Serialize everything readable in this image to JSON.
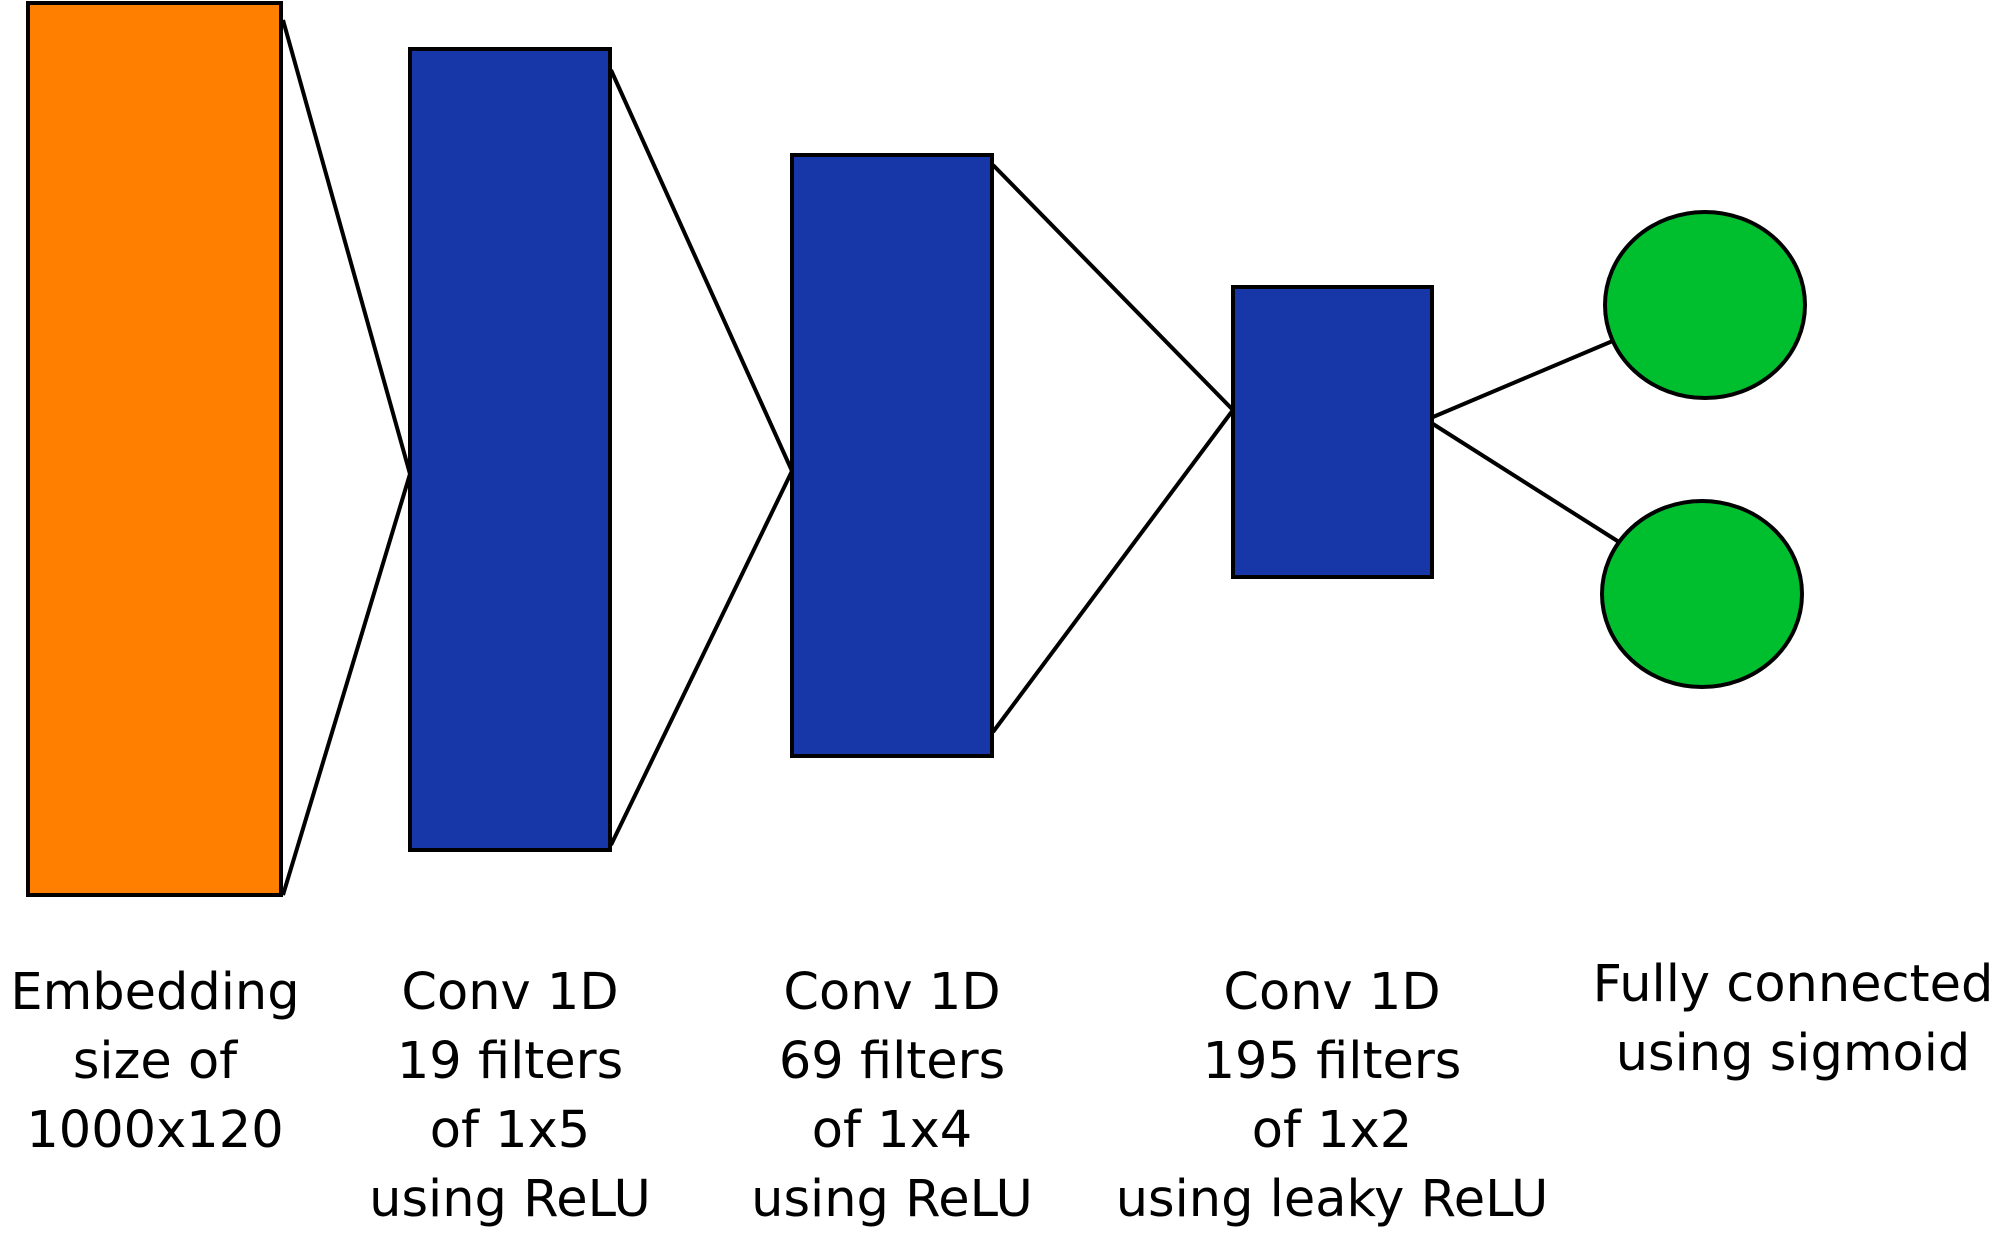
{
  "colors": {
    "embedding_fill": "#ff7f00",
    "conv_fill": "#1737a8",
    "output_fill": "#00bf2f",
    "stroke": "#000000",
    "background": "#ffffff"
  },
  "layers": [
    {
      "id": "embedding",
      "lines": [
        "Embedding",
        "size of",
        "1000x120"
      ]
    },
    {
      "id": "conv1",
      "lines": [
        "Conv 1D",
        "19 filters",
        "of 1x5",
        "using ReLU"
      ]
    },
    {
      "id": "conv2",
      "lines": [
        "Conv 1D",
        "69 filters",
        "of 1x4",
        "using ReLU"
      ]
    },
    {
      "id": "conv3",
      "lines": [
        "Conv 1D",
        "195 filters",
        "of 1x2",
        "using leaky ReLU"
      ]
    },
    {
      "id": "fc",
      "lines": [
        "Fully connected",
        "using sigmoid"
      ]
    }
  ]
}
